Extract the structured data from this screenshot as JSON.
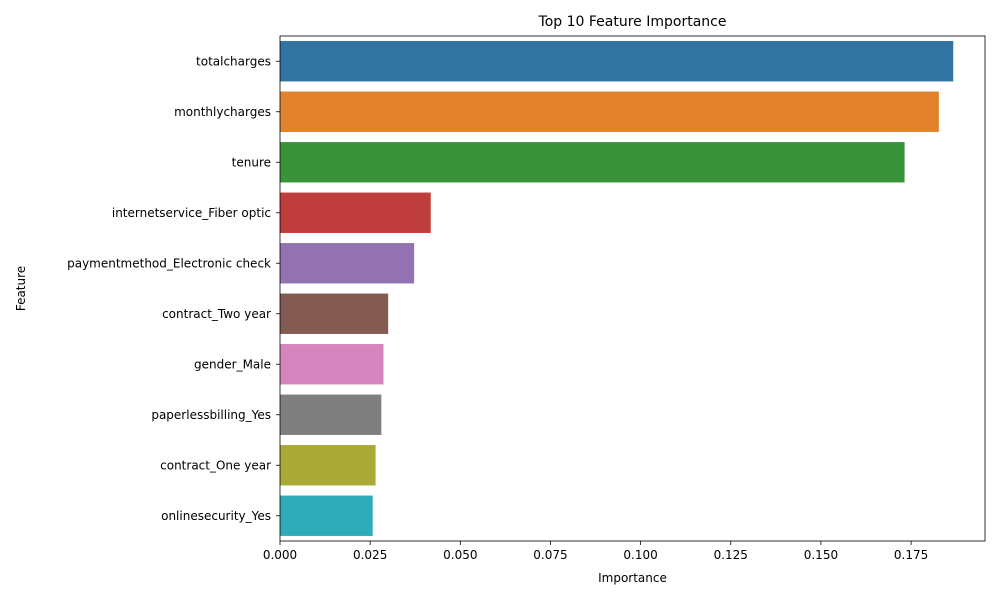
{
  "chart_data": {
    "type": "bar",
    "orientation": "horizontal",
    "title": "Top 10 Feature Importance",
    "xlabel": "Importance",
    "ylabel": "Feature",
    "xlim": [
      0,
      0.1955
    ],
    "xticks": [
      "0.000",
      "0.025",
      "0.050",
      "0.075",
      "0.100",
      "0.125",
      "0.150",
      "0.175"
    ],
    "grid": false,
    "legend": "none",
    "categories": [
      "totalcharges",
      "monthlycharges",
      "tenure",
      "internetservice_Fiber optic",
      "paymentmethod_Electronic check",
      "contract_Two year",
      "gender_Male",
      "paperlessbilling_Yes",
      "contract_One year",
      "onlinesecurity_Yes"
    ],
    "values": [
      0.1867,
      0.1827,
      0.1732,
      0.0418,
      0.0372,
      0.03,
      0.0287,
      0.0281,
      0.0265,
      0.0257
    ],
    "colors": [
      "#3274a1",
      "#e1812c",
      "#3a923a",
      "#c03d3e",
      "#9372b2",
      "#845b53",
      "#d684bd",
      "#7f7f7f",
      "#a9aa35",
      "#2eabb8"
    ]
  }
}
